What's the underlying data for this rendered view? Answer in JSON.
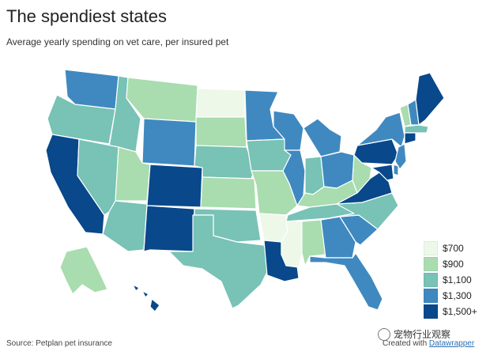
{
  "title": "The spendiest states",
  "subtitle": "Average yearly spending on vet care, per insured pet",
  "colors": {
    "700": "#edf8e9",
    "900": "#a9dcae",
    "1100": "#78c2b6",
    "1300": "#3f89c0",
    "1500": "#08488b"
  },
  "legend": [
    {
      "label": "$700",
      "color_key": "700"
    },
    {
      "label": "$900",
      "color_key": "900"
    },
    {
      "label": "$1,100",
      "color_key": "1100"
    },
    {
      "label": "$1,300",
      "color_key": "1300"
    },
    {
      "label": "$1,500+",
      "color_key": "1500"
    }
  ],
  "states": [
    {
      "name": "WA",
      "level": "1300"
    },
    {
      "name": "OR",
      "level": "1100"
    },
    {
      "name": "CA",
      "level": "1500"
    },
    {
      "name": "ID",
      "level": "1100"
    },
    {
      "name": "NV",
      "level": "1100"
    },
    {
      "name": "MT",
      "level": "900"
    },
    {
      "name": "WY",
      "level": "1300"
    },
    {
      "name": "UT",
      "level": "900"
    },
    {
      "name": "CO",
      "level": "1500"
    },
    {
      "name": "AZ",
      "level": "1100"
    },
    {
      "name": "NM",
      "level": "1500"
    },
    {
      "name": "ND",
      "level": "700"
    },
    {
      "name": "SD",
      "level": "900"
    },
    {
      "name": "NE",
      "level": "1100"
    },
    {
      "name": "KS",
      "level": "900"
    },
    {
      "name": "OK",
      "level": "1100"
    },
    {
      "name": "TX",
      "level": "1100"
    },
    {
      "name": "MN",
      "level": "1300"
    },
    {
      "name": "IA",
      "level": "1100"
    },
    {
      "name": "MO",
      "level": "900"
    },
    {
      "name": "AR",
      "level": "700"
    },
    {
      "name": "LA",
      "level": "1500"
    },
    {
      "name": "WI",
      "level": "1300"
    },
    {
      "name": "IL",
      "level": "1300"
    },
    {
      "name": "MI",
      "level": "1300"
    },
    {
      "name": "IN",
      "level": "1100"
    },
    {
      "name": "OH",
      "level": "1300"
    },
    {
      "name": "KY",
      "level": "900"
    },
    {
      "name": "TN",
      "level": "1100"
    },
    {
      "name": "MS",
      "level": "700"
    },
    {
      "name": "AL",
      "level": "900"
    },
    {
      "name": "GA",
      "level": "1300"
    },
    {
      "name": "FL",
      "level": "1300"
    },
    {
      "name": "SC",
      "level": "1300"
    },
    {
      "name": "NC",
      "level": "1100"
    },
    {
      "name": "VA",
      "level": "1500"
    },
    {
      "name": "WV",
      "level": "900"
    },
    {
      "name": "PA",
      "level": "1500"
    },
    {
      "name": "NY",
      "level": "1300"
    },
    {
      "name": "VT",
      "level": "900"
    },
    {
      "name": "NH",
      "level": "1300"
    },
    {
      "name": "ME",
      "level": "1500"
    },
    {
      "name": "MA",
      "level": "1100"
    },
    {
      "name": "CT",
      "level": "1500"
    },
    {
      "name": "NJ",
      "level": "1300"
    },
    {
      "name": "DE",
      "level": "1300"
    },
    {
      "name": "MD",
      "level": "1500"
    },
    {
      "name": "AK",
      "level": "900"
    },
    {
      "name": "HI",
      "level": "1500"
    }
  ],
  "source": "Source: Petplan pet insurance",
  "credit_prefix": "Created with",
  "credit_link": "Datawrapper",
  "watermark": "宠物行业观察"
}
